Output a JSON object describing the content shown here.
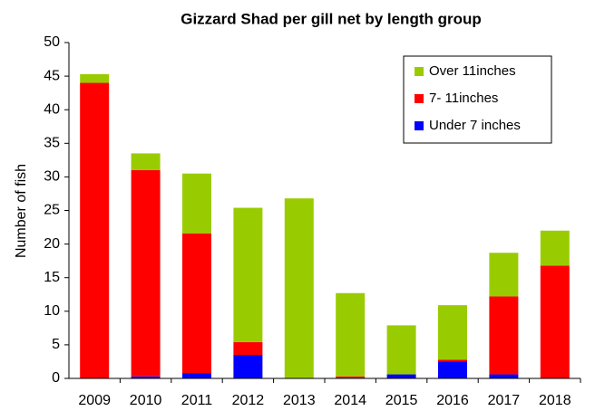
{
  "chart_data": {
    "type": "stacked_bar",
    "title": "Gizzard Shad per gill net by length group",
    "y_label": "Number of fish",
    "categories": [
      "2009",
      "2010",
      "2011",
      "2012",
      "2013",
      "2014",
      "2015",
      "2016",
      "2017",
      "2018"
    ],
    "series": [
      {
        "name": "Under 7 inches",
        "color": "#0000ff",
        "values": [
          0,
          0.3,
          0.8,
          3.5,
          0,
          0.1,
          0.6,
          2.5,
          0.6,
          0
        ]
      },
      {
        "name": "7- 11inches",
        "color": "#ff0000",
        "values": [
          44,
          30.7,
          20.8,
          1.9,
          0,
          0.2,
          0,
          0.3,
          11.6,
          16.8
        ]
      },
      {
        "name": "Over 11inches",
        "color": "#99cc00",
        "values": [
          1.3,
          2.5,
          8.9,
          20,
          26.8,
          12.4,
          7.3,
          8.1,
          6.5,
          5.2
        ]
      }
    ],
    "ylim": [
      0,
      50
    ],
    "yticks": [
      0,
      5,
      10,
      15,
      20,
      25,
      30,
      35,
      40,
      45,
      50
    ],
    "grid": false,
    "legend": "upper right"
  }
}
